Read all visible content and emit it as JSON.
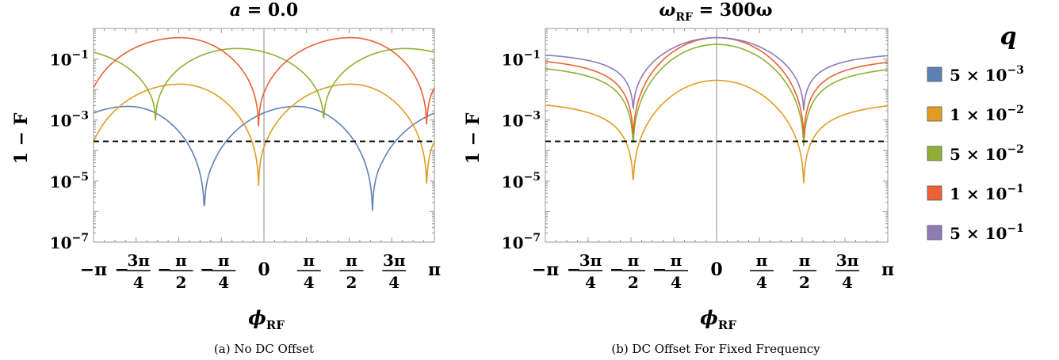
{
  "chart_data": [
    {
      "type": "line",
      "title_var": "a",
      "title_rest": " = 0.0",
      "ylabel": "1 − F",
      "xlabel_main": "ϕ",
      "xlabel_sub": "RF",
      "caption": "(a) No DC Offset",
      "yscale": "log",
      "ylim": [
        1e-07,
        1
      ],
      "xlim": [
        -3.1416,
        3.1416
      ],
      "threshold": 0.0002,
      "ytick_labels": [
        {
          "base": "10",
          "exp": "−1",
          "value": 0.1
        },
        {
          "base": "10",
          "exp": "−3",
          "value": 0.001
        },
        {
          "base": "10",
          "exp": "−5",
          "value": 1e-05
        },
        {
          "base": "10",
          "exp": "−7",
          "value": 1e-07
        }
      ],
      "xtick_labels": [
        {
          "value": -3.1416,
          "text": "−π"
        },
        {
          "value": -2.3562,
          "prefix": "−",
          "num": "3π",
          "den": "4"
        },
        {
          "value": -1.5708,
          "prefix": "−",
          "num": "π",
          "den": "2"
        },
        {
          "value": -0.7854,
          "prefix": "−",
          "num": "π",
          "den": "4"
        },
        {
          "value": 0,
          "text": "0"
        },
        {
          "value": 0.7854,
          "num": "π",
          "den": "4"
        },
        {
          "value": 1.5708,
          "num": "π",
          "den": "2"
        },
        {
          "value": 2.3562,
          "num": "3π",
          "den": "4"
        },
        {
          "value": 3.1416,
          "text": "π"
        }
      ],
      "series": [
        {
          "name": "5 × 10^−3",
          "color": "#5E81B5",
          "min_x": [
            -1.1,
            2.0
          ],
          "floor": 4e-07,
          "max_x": [
            -2.5,
            0.6
          ],
          "top": 0.0028
        },
        {
          "name": "1 × 10^−2",
          "color": "#E19C24",
          "min_x": [
            -0.1,
            3.0
          ],
          "floor": 3e-06,
          "max_x": [
            -1.55,
            1.6
          ],
          "top": 0.015
        },
        {
          "name": "5 × 10^−2",
          "color": "#8FB032",
          "min_x": [
            -2.0,
            1.1
          ],
          "floor": 0.0005,
          "max_x": [
            -0.5,
            2.6
          ],
          "top": 0.22
        },
        {
          "name": "1 × 10^−1",
          "color": "#EB6235",
          "min_x": [
            -0.1,
            3.0
          ],
          "floor": 0.0003,
          "max_x": [
            -1.55,
            1.6
          ],
          "top": 0.5
        }
      ]
    },
    {
      "type": "line",
      "title_var": "ω",
      "title_sub": "RF",
      "title_rest": " = 300ω",
      "ylabel": "1 − F",
      "xlabel_main": "ϕ",
      "xlabel_sub": "RF",
      "caption": "(b) DC Offset For Fixed Frequency",
      "yscale": "log",
      "ylim": [
        1e-07,
        1
      ],
      "xlim": [
        -3.1416,
        3.1416
      ],
      "threshold": 0.0002,
      "ytick_labels": [
        {
          "base": "10",
          "exp": "−1",
          "value": 0.1
        },
        {
          "base": "10",
          "exp": "−3",
          "value": 0.001
        },
        {
          "base": "10",
          "exp": "−5",
          "value": 1e-05
        },
        {
          "base": "10",
          "exp": "−7",
          "value": 1e-07
        }
      ],
      "xtick_labels": [
        {
          "value": -3.1416,
          "text": "−π"
        },
        {
          "value": -2.3562,
          "prefix": "−",
          "num": "3π",
          "den": "4"
        },
        {
          "value": -1.5708,
          "prefix": "−",
          "num": "π",
          "den": "2"
        },
        {
          "value": -0.7854,
          "prefix": "−",
          "num": "π",
          "den": "4"
        },
        {
          "value": 0,
          "text": "0"
        },
        {
          "value": 0.7854,
          "num": "π",
          "den": "4"
        },
        {
          "value": 1.5708,
          "num": "π",
          "den": "2"
        },
        {
          "value": 2.3562,
          "num": "3π",
          "den": "4"
        },
        {
          "value": 3.1416,
          "text": "π"
        }
      ],
      "series": [
        {
          "name": "5 × 10^−3",
          "color": "#5E81B5",
          "min_x": [],
          "floor": 0,
          "max_x": [],
          "top": 0
        },
        {
          "name": "1 × 10^−2",
          "color": "#E19C24",
          "min_x": [
            -1.53,
            1.6
          ],
          "floor": 3e-06,
          "max_x": [
            0.0
          ],
          "top": 0.02
        },
        {
          "name": "5 × 10^−2",
          "color": "#8FB032",
          "min_x": [
            -1.53,
            1.6
          ],
          "floor": 5e-05,
          "max_x": [
            0.0
          ],
          "top": 0.3
        },
        {
          "name": "1 × 10^−1",
          "color": "#EB6235",
          "min_x": [
            -1.53,
            1.6
          ],
          "floor": 0.0001,
          "max_x": [
            0.0
          ],
          "top": 0.5
        },
        {
          "name": "5 × 10^−1",
          "color": "#8F7AB7",
          "min_x": [
            -1.53,
            1.6
          ],
          "floor": 0.001,
          "max_x": [
            0.0
          ],
          "top": 0.5
        }
      ]
    }
  ],
  "legend": {
    "title": "q",
    "items": [
      {
        "mant": "5",
        "exp": "−3",
        "color": "#5E81B5"
      },
      {
        "mant": "1",
        "exp": "−2",
        "color": "#E19C24"
      },
      {
        "mant": "5",
        "exp": "−2",
        "color": "#8FB032"
      },
      {
        "mant": "1",
        "exp": "−1",
        "color": "#EB6235"
      },
      {
        "mant": "5",
        "exp": "−1",
        "color": "#8F7AB7"
      }
    ]
  }
}
